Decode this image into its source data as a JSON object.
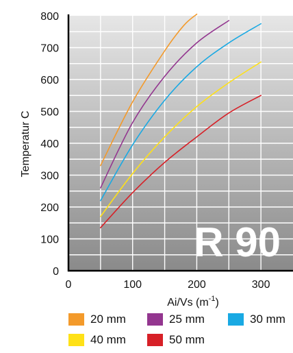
{
  "chart_data": {
    "type": "line",
    "title": "",
    "ylabel": "Temperatur C",
    "xlabel": {
      "base": "Ai/Vs (m",
      "sup": "-1",
      "close": ")"
    },
    "xlim": [
      0,
      350
    ],
    "ylim": [
      0,
      800
    ],
    "x_ticks": [
      0,
      100,
      200,
      300
    ],
    "y_ticks": [
      0,
      100,
      200,
      300,
      400,
      500,
      600,
      700,
      800
    ],
    "grid": true,
    "legend_position": "bottom",
    "annotation": "R 90",
    "series": [
      {
        "name": "20 mm",
        "color": "#F39A2B",
        "x": [
          50,
          100,
          150,
          180,
          200
        ],
        "y": [
          330,
          530,
          690,
          770,
          805
        ]
      },
      {
        "name": "25 mm",
        "color": "#93368F",
        "x": [
          50,
          100,
          150,
          200,
          250
        ],
        "y": [
          260,
          465,
          610,
          715,
          785
        ]
      },
      {
        "name": "30 mm",
        "color": "#19A9E3",
        "x": [
          50,
          100,
          150,
          200,
          250,
          300
        ],
        "y": [
          220,
          395,
          535,
          640,
          715,
          775
        ]
      },
      {
        "name": "40 mm",
        "color": "#FFE117",
        "x": [
          50,
          100,
          150,
          200,
          250,
          300
        ],
        "y": [
          170,
          305,
          420,
          515,
          590,
          655
        ]
      },
      {
        "name": "50 mm",
        "color": "#D72027",
        "x": [
          50,
          100,
          150,
          200,
          250,
          300
        ],
        "y": [
          135,
          245,
          340,
          420,
          495,
          550
        ]
      }
    ]
  }
}
